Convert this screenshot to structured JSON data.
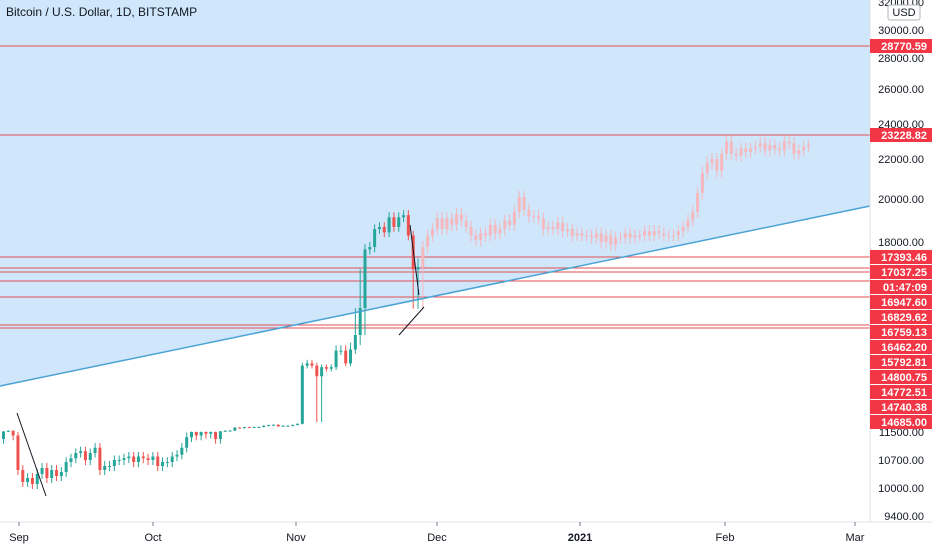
{
  "header": {
    "title": "Bitcoin / U.S. Dollar, 1D, BITSTAMP"
  },
  "currency": "USD",
  "colors": {
    "up": "#26a69a",
    "down": "#ef5350",
    "projection": "#f4b8bd",
    "zone": "#cfe6fb",
    "trendline": "#4aa3d4",
    "hline": "#e35151",
    "badge": "#f23645"
  },
  "price_axis_ticks": [
    "32000.00",
    "30000.00",
    "28000.00",
    "26000.00",
    "24000.00",
    "22000.00",
    "20000.00",
    "18000.00",
    "11500.00",
    "10700.00",
    "10000.00",
    "9400.00"
  ],
  "date_axis_ticks": [
    "Sep",
    "Oct",
    "Nov",
    "Dec",
    "2021",
    "Feb",
    "Mar"
  ],
  "price_labels": [
    "28770.59",
    "23228.82",
    "17393.46",
    "17037.25",
    "01:47:09",
    "16947.60",
    "16829.62",
    "16759.13",
    "16462.20",
    "15792.81",
    "14800.75",
    "14772.51",
    "14740.38",
    "14685.00"
  ],
  "chart_data": {
    "type": "candlestick",
    "symbol": "Bitcoin / U.S. Dollar",
    "interval": "1D",
    "exchange": "BITSTAMP",
    "x_range": [
      "2020-09-01",
      "2021-03-03"
    ],
    "y_range": [
      9300,
      32000
    ],
    "horizontal_levels": [
      28770.59,
      23228.82,
      17393.46,
      17037.25,
      16947.6,
      16829.62,
      16759.13
    ],
    "trendline": {
      "from": [
        "2020-08-31",
        15000
      ],
      "to": [
        "2021-03-03",
        19700
      ]
    },
    "candles_close": [
      11650,
      11900,
      11400,
      10450,
      10150,
      10250,
      10100,
      10350,
      10500,
      10250,
      10450,
      10300,
      10400,
      10650,
      10750,
      10900,
      10950,
      10700,
      10900,
      11050,
      10450,
      10550,
      10550,
      10700,
      10700,
      10750,
      10800,
      10650,
      10800,
      10750,
      10700,
      10800,
      10550,
      10650,
      10650,
      10800,
      10850,
      11050,
      11350,
      11500,
      11400,
      11500,
      11450,
      11500,
      11300,
      11700,
      11900,
      11950,
      12900,
      12800,
      13050,
      12950,
      13050,
      13100,
      13500,
      13700,
      13800,
      13300,
      13500,
      13500,
      13750,
      14100,
      15550,
      15700,
      15550,
      14850,
      15450,
      15350,
      15450,
      16300,
      16300,
      15700,
      16350,
      16700,
      16900,
      17700,
      17800,
      18600,
      18700,
      18450,
      19150,
      18700,
      19150,
      19250,
      18300,
      17100,
      17150
    ],
    "projection_close": [
      17800,
      18300,
      18600,
      19100,
      18600,
      19100,
      18800,
      19300,
      19000,
      18700,
      18300,
      18100,
      18400,
      18300,
      18800,
      18400,
      18600,
      19000,
      18800,
      19400,
      20100,
      19500,
      19200,
      19200,
      19100,
      18600,
      18700,
      18600,
      18900,
      18500,
      18600,
      18300,
      18400,
      18300,
      18300,
      18200,
      18400,
      18000,
      18300,
      17900,
      18200,
      18200,
      18400,
      18200,
      18300,
      18300,
      18500,
      18300,
      18500,
      18400,
      18300,
      18300,
      18300,
      18500,
      18700,
      19000,
      19400,
      20300,
      21300,
      21800,
      22000,
      21400,
      22300,
      23000,
      22300,
      22200,
      22600,
      22400,
      22600,
      22700,
      22900,
      22500,
      22800,
      22600,
      22500,
      23000,
      22900,
      22300,
      22500,
      22700,
      22800
    ]
  }
}
